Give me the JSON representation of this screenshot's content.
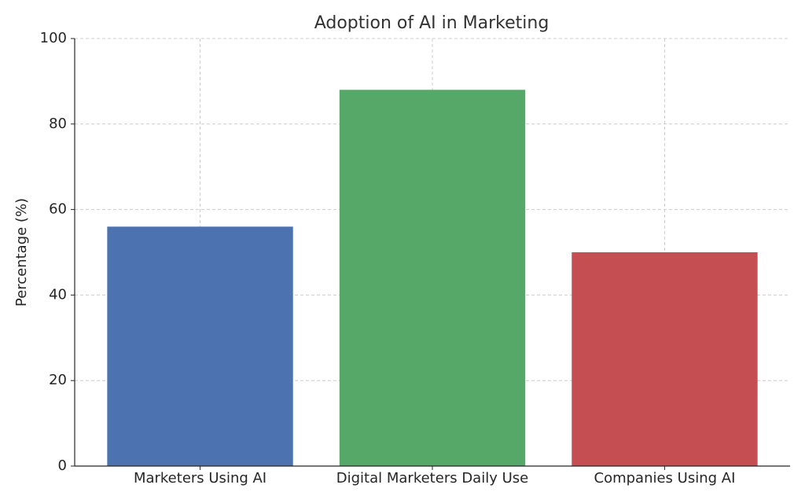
{
  "chart_data": {
    "type": "bar",
    "title": "Adoption of AI in Marketing",
    "y_label": "Percentage (%)",
    "categories": [
      "Marketers Using AI",
      "Digital Marketers Daily Use",
      "Companies Using AI"
    ],
    "values": [
      56,
      88,
      50
    ],
    "colors": [
      "#4c72b0",
      "#55a868",
      "#c44e52"
    ],
    "ylim": [
      0,
      100
    ],
    "yticks": [
      0,
      20,
      40,
      60,
      80,
      100
    ],
    "grid": true
  }
}
